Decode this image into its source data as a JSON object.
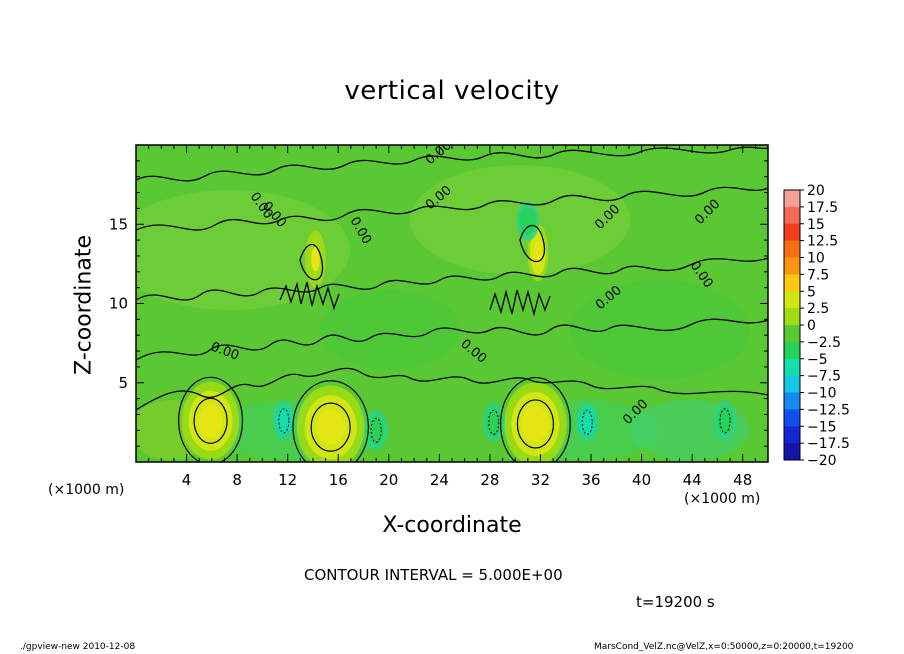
{
  "chart_data": {
    "type": "heatmap",
    "title": "vertical velocity",
    "xlabel": "X-coordinate",
    "ylabel": "Z-coordinate",
    "x_unit_label": "(×1000 m)",
    "xlim": [
      0,
      50
    ],
    "ylim": [
      0,
      20
    ],
    "x_ticks": [
      4,
      8,
      12,
      16,
      20,
      24,
      28,
      32,
      36,
      40,
      44,
      48
    ],
    "y_ticks": [
      5,
      10,
      15
    ],
    "contour_interval_text": "CONTOUR INTERVAL = 5.000E+00",
    "contour_label": "0.00",
    "colorbar": {
      "levels": [
        "20",
        "17.5",
        "15",
        "12.5",
        "10",
        "7.5",
        "5",
        "2.5",
        "0",
        "-2.5",
        "-5",
        "-7.5",
        "-10",
        "-12.5",
        "-15",
        "-17.5",
        "-20"
      ],
      "colors": [
        "#f4a09a",
        "#f46a55",
        "#f23c1e",
        "#fa6e14",
        "#fa9612",
        "#fac812",
        "#d2e614",
        "#a0dc14",
        "#5ac832",
        "#28d25a",
        "#14dcaa",
        "#14c8e6",
        "#148cf0",
        "#1450f0",
        "#1428d2",
        "#1414aa",
        "#5a14b4"
      ]
    },
    "features": [
      {
        "kind": "warm",
        "x": 5.9,
        "z": 2.6,
        "level": 5
      },
      {
        "kind": "warm",
        "x": 15.4,
        "z": 2.2,
        "level": 5
      },
      {
        "kind": "warm",
        "x": 31.6,
        "z": 2.4,
        "level": 5
      },
      {
        "kind": "warm",
        "x": 14.2,
        "z": 12.8,
        "level": 2.5
      },
      {
        "kind": "warm",
        "x": 31.8,
        "z": 13.2,
        "level": 5
      },
      {
        "kind": "cool",
        "x": 11.7,
        "z": 2.6,
        "level": -5
      },
      {
        "kind": "cool",
        "x": 35.7,
        "z": 2.5,
        "level": -5
      },
      {
        "kind": "cool",
        "x": 19.0,
        "z": 2.0,
        "level": -2.5
      },
      {
        "kind": "cool",
        "x": 46.6,
        "z": 2.6,
        "level": -2.5
      },
      {
        "kind": "cool",
        "x": 28.3,
        "z": 2.5,
        "level": -2.5
      },
      {
        "kind": "cool",
        "x": 31.0,
        "z": 15.2,
        "level": -2.5
      }
    ]
  },
  "annotations": {
    "contour_interval": "CONTOUR INTERVAL = 5.000E+00",
    "time": "t=19200 s",
    "footer_left": "./gpview-new  2010-12-08",
    "footer_right": "MarsCond_VelZ.nc@VelZ,x=0:50000,z=0:20000,t=19200"
  }
}
